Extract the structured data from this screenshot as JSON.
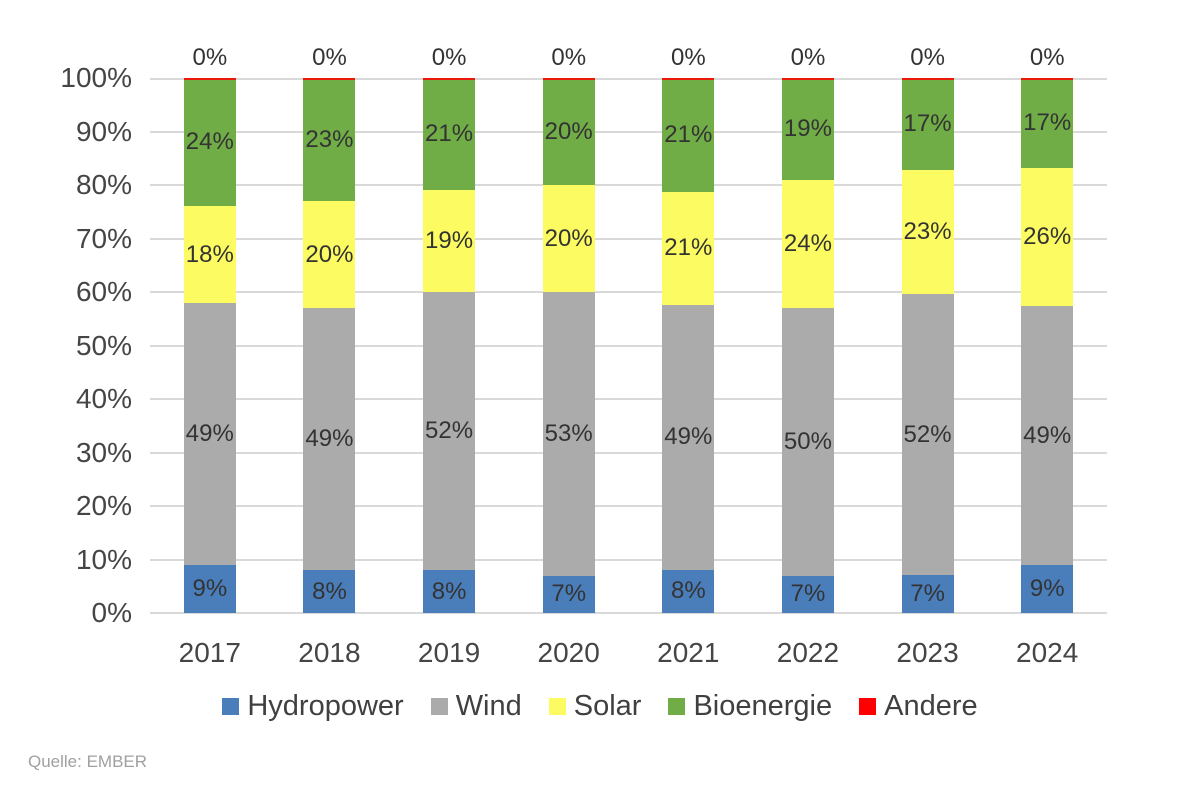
{
  "source": "Quelle: EMBER",
  "styles": {
    "background": "#ffffff",
    "grid_color": "#d9d9d9",
    "axis_text_color": "#454545",
    "data_label_color": "#333333",
    "legend_text_color": "#404040",
    "source_text_color": "#a0a0a0"
  },
  "chart_data": {
    "type": "bar",
    "variant": "stacked-100-percent-column",
    "title": "",
    "xlabel": "",
    "ylabel": "",
    "categories": [
      "2017",
      "2018",
      "2019",
      "2020",
      "2021",
      "2022",
      "2023",
      "2024"
    ],
    "series": [
      {
        "name": "Hydropower",
        "color": "#4a7ebb",
        "values": [
          9,
          8,
          8,
          7,
          8,
          7,
          7,
          9
        ]
      },
      {
        "name": "Wind",
        "color": "#ababab",
        "values": [
          49,
          49,
          52,
          53,
          49,
          50,
          52,
          49
        ]
      },
      {
        "name": "Solar",
        "color": "#fcfc62",
        "values": [
          18,
          20,
          19,
          20,
          21,
          24,
          23,
          26
        ]
      },
      {
        "name": "Bioenergie",
        "color": "#71ad47",
        "values": [
          24,
          23,
          21,
          20,
          21,
          19,
          17,
          17
        ]
      },
      {
        "name": "Andere",
        "color": "#ff0000",
        "values": [
          0,
          0,
          0,
          0,
          0,
          0,
          0,
          0
        ]
      }
    ],
    "y_axis": {
      "min": 0,
      "max": 100,
      "tick_step": 10,
      "tick_labels": [
        "0%",
        "10%",
        "20%",
        "30%",
        "40%",
        "50%",
        "60%",
        "70%",
        "80%",
        "90%",
        "100%"
      ]
    },
    "grid": true,
    "legend_position": "bottom",
    "data_label_suffix": "%",
    "top_label_series": "Andere"
  }
}
